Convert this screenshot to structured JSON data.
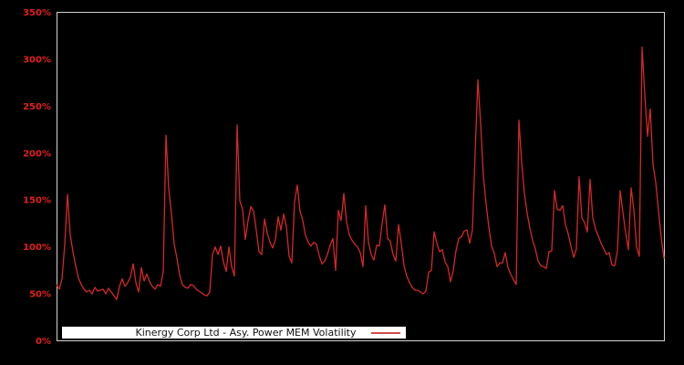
{
  "legend": {
    "label": "Kinergy Corp Ltd - Asy. Power MEM Volatility"
  },
  "chart_data": {
    "type": "line",
    "title": "",
    "xlabel": "",
    "ylabel": "",
    "x_axis_tick_labels": "none",
    "grid": false,
    "background_color": "#000000",
    "axis_border_color": "#d4d4d4",
    "tick_label_color": "#e01f1f",
    "ylim": [
      0,
      350
    ],
    "y_tick_values": [
      0,
      50,
      100,
      150,
      200,
      250,
      300,
      350
    ],
    "y_tick_labels": [
      "0%",
      "50%",
      "100%",
      "150%",
      "200%",
      "250%",
      "300%",
      "350%"
    ],
    "legend_position": "bottom-inside",
    "series": [
      {
        "name": "Kinergy Corp Ltd - Asy. Power MEM Volatility",
        "color": "#d62728",
        "unit": "percent",
        "values": [
          60,
          55,
          66,
          103,
          156,
          113,
          95,
          80,
          67,
          60,
          55,
          52,
          54,
          50,
          57,
          53,
          54,
          55,
          50,
          56,
          52,
          48,
          44,
          58,
          66,
          58,
          62,
          68,
          82,
          62,
          52,
          78,
          64,
          71,
          63,
          58,
          55,
          60,
          58,
          74,
          219,
          162,
          135,
          103,
          88,
          70,
          60,
          57,
          56,
          60,
          59,
          55,
          53,
          51,
          49,
          48,
          52,
          92,
          100,
          92,
          101,
          84,
          74,
          100,
          79,
          69,
          230,
          149,
          140,
          108,
          128,
          143,
          138,
          118,
          95,
          92,
          130,
          115,
          105,
          99,
          108,
          132,
          118,
          135,
          122,
          90,
          83,
          148,
          166,
          138,
          128,
          112,
          105,
          101,
          105,
          103,
          91,
          82,
          85,
          92,
          102,
          109,
          75,
          139,
          128,
          157,
          127,
          113,
          107,
          103,
          100,
          94,
          79,
          144,
          105,
          92,
          86,
          102,
          101,
          125,
          145,
          109,
          106,
          92,
          85,
          124,
          104,
          80,
          69,
          62,
          57,
          54,
          54,
          52,
          50,
          53,
          73,
          75,
          116,
          104,
          95,
          97,
          84,
          79,
          63,
          75,
          96,
          109,
          111,
          117,
          118,
          104,
          118,
          200,
          278,
          232,
          176,
          146,
          121,
          101,
          93,
          79,
          83,
          83,
          94,
          78,
          71,
          65,
          60,
          235,
          190,
          157,
          136,
          120,
          107,
          98,
          85,
          80,
          79,
          77,
          95,
          96,
          160,
          140,
          139,
          144,
          124,
          114,
          101,
          89,
          98,
          175,
          131,
          126,
          116,
          172,
          131,
          119,
          112,
          104,
          98,
          92,
          94,
          81,
          80,
          96,
          160,
          137,
          115,
          97,
          163,
          140,
          100,
          90,
          313,
          262,
          218,
          247,
          188,
          169,
          139,
          110,
          88
        ]
      }
    ]
  }
}
